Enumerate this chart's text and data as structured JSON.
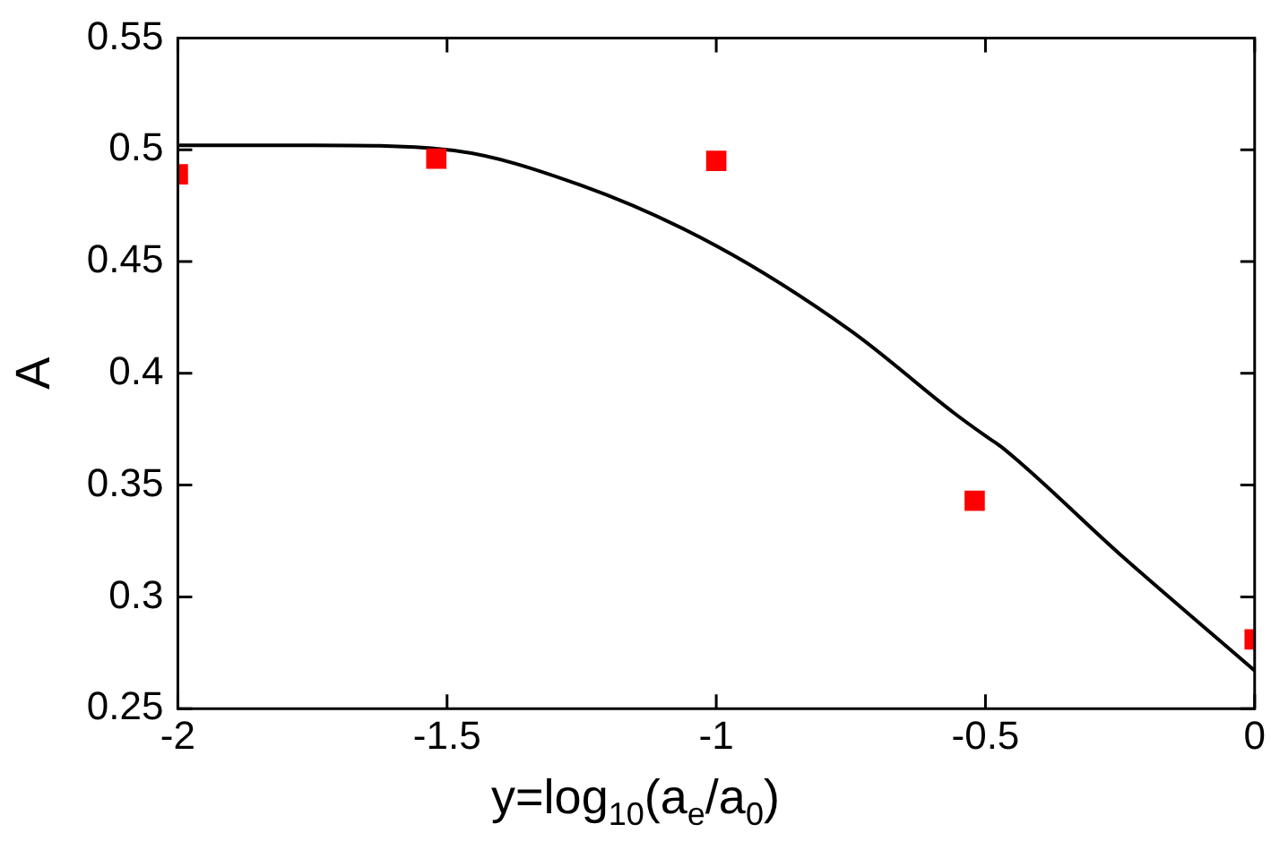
{
  "chart_data": {
    "type": "scatter",
    "xlabel": "y=log$_{10}$(a$_{e}$/a$_{0}$)",
    "ylabel": "A",
    "xlim": [
      -2,
      0
    ],
    "xticks": [
      -2,
      -1.5,
      -1,
      -0.5,
      0
    ],
    "ylim": [
      0.25,
      0.55
    ],
    "yticks": [
      0.25,
      0.3,
      0.35,
      0.4,
      0.45,
      0.5,
      0.55
    ],
    "grid": false,
    "legend": false,
    "series": [
      {
        "type": "scatter",
        "color": "#ff0000",
        "marker": "square",
        "x": [
          -2,
          -1.52,
          -1,
          -0.52,
          0
        ],
        "values": [
          0.489,
          0.496,
          0.495,
          0.343,
          0.281
        ]
      },
      {
        "type": "line",
        "color": "#000000",
        "marker": "none",
        "x": [
          -2,
          -1.75,
          -1.5,
          -1.25,
          -1,
          -0.75,
          -0.557,
          -0.5,
          -0.47,
          -0.25,
          0
        ],
        "values": [
          0.502,
          0.502,
          0.5,
          0.484,
          0.457,
          0.419,
          0.382,
          0.372,
          0.367,
          0.319,
          0.267
        ]
      }
    ]
  }
}
